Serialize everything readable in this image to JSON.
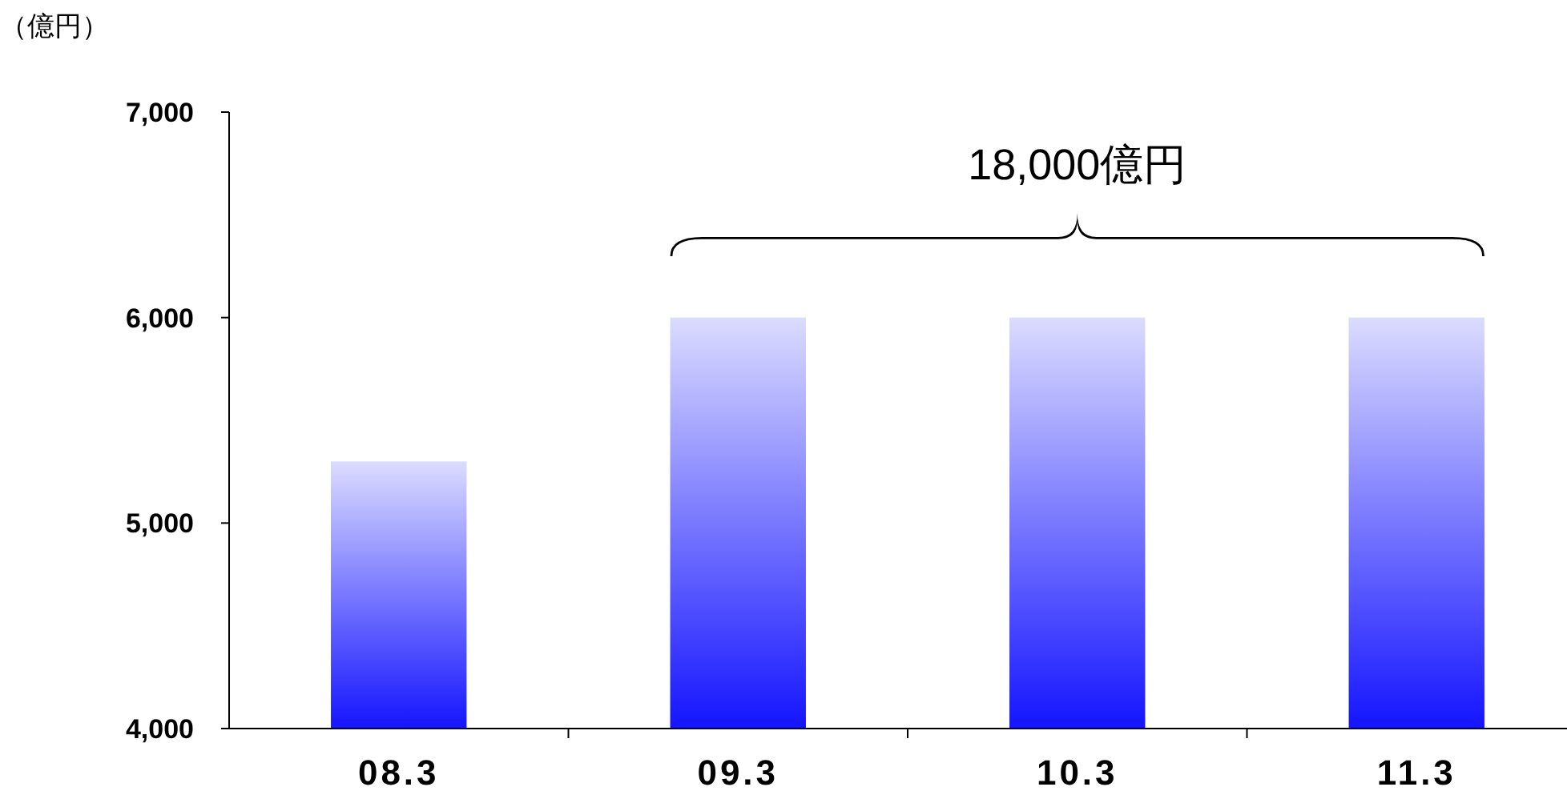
{
  "chart_data": {
    "type": "bar",
    "ylabel": "（億円）",
    "categories": [
      "08.3",
      "09.3",
      "10.3",
      "11.3"
    ],
    "values": [
      5300,
      6000,
      6000,
      6000
    ],
    "color": "#1414ff",
    "ylim": [
      4000,
      7000
    ],
    "yticks": [
      {
        "value": 4000,
        "label": "4,000"
      },
      {
        "value": 5000,
        "label": "5,000"
      },
      {
        "value": 6000,
        "label": "6,000"
      },
      {
        "value": 7000,
        "label": "7,000"
      }
    ],
    "grid": false,
    "annotations": [
      "18,000億円"
    ]
  }
}
